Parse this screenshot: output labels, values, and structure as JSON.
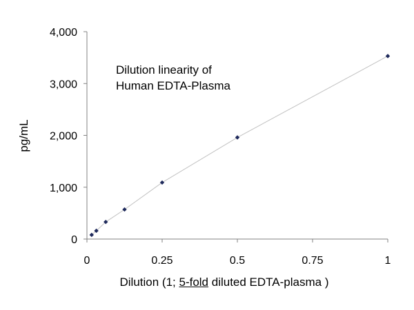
{
  "chart_data": {
    "type": "scatter",
    "title": "",
    "annotation_lines": [
      "Dilution linearity of",
      "Human EDTA-Plasma"
    ],
    "xlabel_parts": [
      "Dilution (1; ",
      "5-fold",
      " diluted EDTA-plasma )"
    ],
    "ylabel": "pg/mL",
    "xlim": [
      0,
      1
    ],
    "ylim": [
      0,
      4000
    ],
    "x_ticks": [
      0,
      0.25,
      0.5,
      0.75,
      1
    ],
    "x_tick_labels": [
      "0",
      "0.25",
      "0.5",
      "0.75",
      "1"
    ],
    "y_ticks": [
      0,
      1000,
      2000,
      3000,
      4000
    ],
    "y_tick_labels": [
      "0",
      "1,000",
      "2,000",
      "3,000",
      "4,000"
    ],
    "grid": false,
    "legend": "none",
    "series": [
      {
        "x": [
          0.015625,
          0.03125,
          0.0625,
          0.125,
          0.25,
          0.5,
          1
        ],
        "y": [
          80,
          160,
          330,
          570,
          1090,
          1960,
          3530
        ],
        "marker": "diamond",
        "marker_color": "#1f2a5c",
        "line_color": "#c0c0c0"
      }
    ]
  }
}
